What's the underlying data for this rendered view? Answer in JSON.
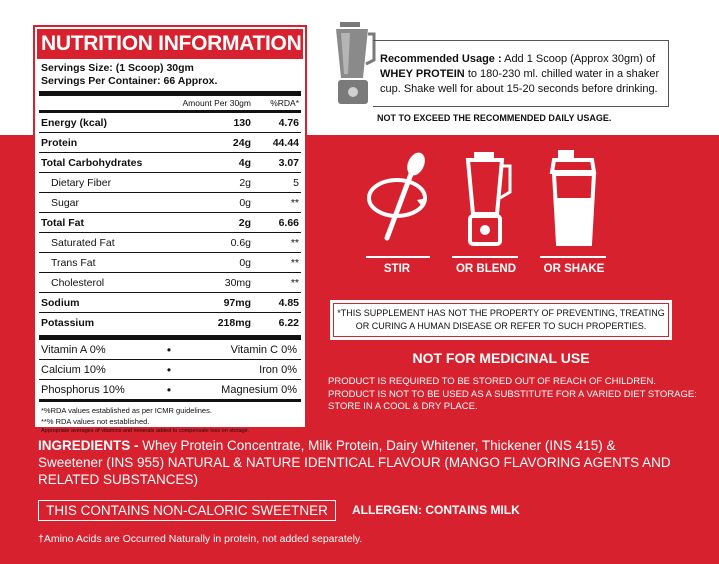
{
  "nutrition": {
    "title": "NUTRITION INFORMATION",
    "serving_size": "Servings Size: (1 Scoop) 30gm",
    "servings_per_container": "Servings Per Container: 66 Approx.",
    "header_amount": "Amount Per 30gm",
    "header_rda": "%RDA*",
    "rows": [
      {
        "label": "Energy (kcal)",
        "amount": "130",
        "rda": "4.76"
      },
      {
        "label": "Protein",
        "amount": "24g",
        "rda": "44.44"
      },
      {
        "label": "Total Carbohydrates",
        "amount": "4g",
        "rda": "3.07"
      },
      {
        "label": "Dietary Fiber",
        "amount": "2g",
        "rda": "5"
      },
      {
        "label": "Sugar",
        "amount": "0g",
        "rda": "**"
      },
      {
        "label": "Total Fat",
        "amount": "2g",
        "rda": "6.66"
      },
      {
        "label": "Saturated Fat",
        "amount": "0.6g",
        "rda": "**"
      },
      {
        "label": "Trans Fat",
        "amount": "0g",
        "rda": "**"
      },
      {
        "label": "Cholesterol",
        "amount": "30mg",
        "rda": "**"
      },
      {
        "label": "Sodium",
        "amount": "97mg",
        "rda": "4.85"
      },
      {
        "label": "Potassium",
        "amount": "218mg",
        "rda": "6.22"
      }
    ],
    "vitamins": [
      {
        "left": "Vitamin A 0%",
        "right": "Vitamin C 0%"
      },
      {
        "left": "Calcium 10%",
        "right": "Iron 0%"
      },
      {
        "left": "Phosphorus 10%",
        "right": "Magnesium 0%"
      }
    ],
    "bullet": "•",
    "footnote_1": "*%RDA values established as per ICMR guidelines.",
    "footnote_2": "**% RDA values not established.",
    "footnote_3": "Appropriate averages of vitamins and minerals added to compensate loss on storage."
  },
  "usage": {
    "label": "Recommended Usage :",
    "text_1": " Add 1 Scoop (Approx 30gm) of",
    "product": "WHEY PROTEIN",
    "text_2": " to 180-230 ml. chilled water in a shaker cup. Shake well for about 15-20 seconds before drinking.",
    "warning": "NOT TO EXCEED THE RECOMMENDED DAILY USAGE."
  },
  "methods": [
    {
      "label": "STIR",
      "icon": "stir-spoon-icon"
    },
    {
      "label": "OR BLEND",
      "icon": "blender-icon"
    },
    {
      "label": "OR SHAKE",
      "icon": "shaker-icon"
    }
  ],
  "disclaimer": "*THIS SUPPLEMENT HAS NOT THE PROPERTY OF PREVENTING, TREATING OR CURING A HUMAN DISEASE OR REFER TO SUCH PROPERTIES.",
  "not_medicinal": "NOT FOR MEDICINAL USE",
  "storage": "PRODUCT IS REQUIRED TO BE STORED OUT OF REACH OF CHILDREN. PRODUCT IS NOT TO BE USED AS A SUBSTITUTE FOR A VARIED DIET STORAGE: STORE IN A COOL & DRY PLACE.",
  "ingredients": {
    "label": "INGREDIENTS - ",
    "text": "Whey Protein Concentrate, Milk Protein, Dairy Whitener, Thickener (INS 415) & Sweetener (INS 955) NATURAL & NATURE IDENTICAL FLAVOUR (MANGO FLAVORING AGENTS AND RELATED SUBSTANCES)"
  },
  "sweetener_note": "THIS CONTAINS NON-CALORIC SWEETNER",
  "allergen": "ALLERGEN: CONTAINS MILK",
  "amino_note": "†Amino Acids are Occurred Naturally in protein, not added separately.",
  "colors": {
    "brand_red": "#d8212e",
    "text_dark": "#111111",
    "white": "#ffffff"
  }
}
